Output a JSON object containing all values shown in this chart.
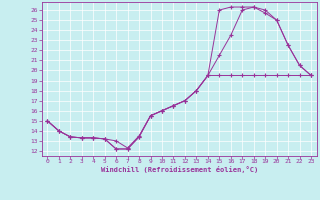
{
  "xlabel": "Windchill (Refroidissement éolien,°C)",
  "xlim": [
    -0.5,
    23.5
  ],
  "ylim": [
    11.5,
    26.8
  ],
  "xticks": [
    0,
    1,
    2,
    3,
    4,
    5,
    6,
    7,
    8,
    9,
    10,
    11,
    12,
    13,
    14,
    15,
    16,
    17,
    18,
    19,
    20,
    21,
    22,
    23
  ],
  "yticks": [
    12,
    13,
    14,
    15,
    16,
    17,
    18,
    19,
    20,
    21,
    22,
    23,
    24,
    25,
    26
  ],
  "line_color": "#993399",
  "bg_color": "#c8eef0",
  "grid_color": "#ffffff",
  "line_upper_x": [
    0,
    1,
    2,
    3,
    4,
    5,
    6,
    7,
    8,
    9,
    10,
    11,
    12,
    13,
    14,
    15,
    16,
    17,
    18,
    19,
    20,
    21,
    22,
    23
  ],
  "line_upper_y": [
    15,
    14,
    13.4,
    13.3,
    13.3,
    13.2,
    12.2,
    12.2,
    13.4,
    15.5,
    16.0,
    16.5,
    17.0,
    18.0,
    19.5,
    26.0,
    26.3,
    26.3,
    26.3,
    25.7,
    25.0,
    22.5,
    20.5,
    19.5
  ],
  "line_mid_x": [
    0,
    1,
    2,
    3,
    4,
    5,
    6,
    7,
    8,
    9,
    10,
    11,
    12,
    13,
    14,
    15,
    16,
    17,
    18,
    19,
    20,
    21,
    22,
    23
  ],
  "line_mid_y": [
    15,
    14,
    13.4,
    13.3,
    13.3,
    13.2,
    12.2,
    12.2,
    13.4,
    15.5,
    16.0,
    16.5,
    17.0,
    18.0,
    19.5,
    21.5,
    23.5,
    26.0,
    26.3,
    26.0,
    25.0,
    22.5,
    20.5,
    19.5
  ],
  "line_low_x": [
    0,
    1,
    2,
    3,
    4,
    5,
    6,
    7,
    8,
    9,
    10,
    11,
    12,
    13,
    14,
    15,
    16,
    17,
    18,
    19,
    20,
    21,
    22,
    23
  ],
  "line_low_y": [
    15,
    14,
    13.4,
    13.3,
    13.3,
    13.2,
    13.0,
    12.3,
    13.5,
    15.5,
    16.0,
    16.5,
    17.0,
    18.0,
    19.5,
    19.5,
    19.5,
    19.5,
    19.5,
    19.5,
    19.5,
    19.5,
    19.5,
    19.5
  ]
}
